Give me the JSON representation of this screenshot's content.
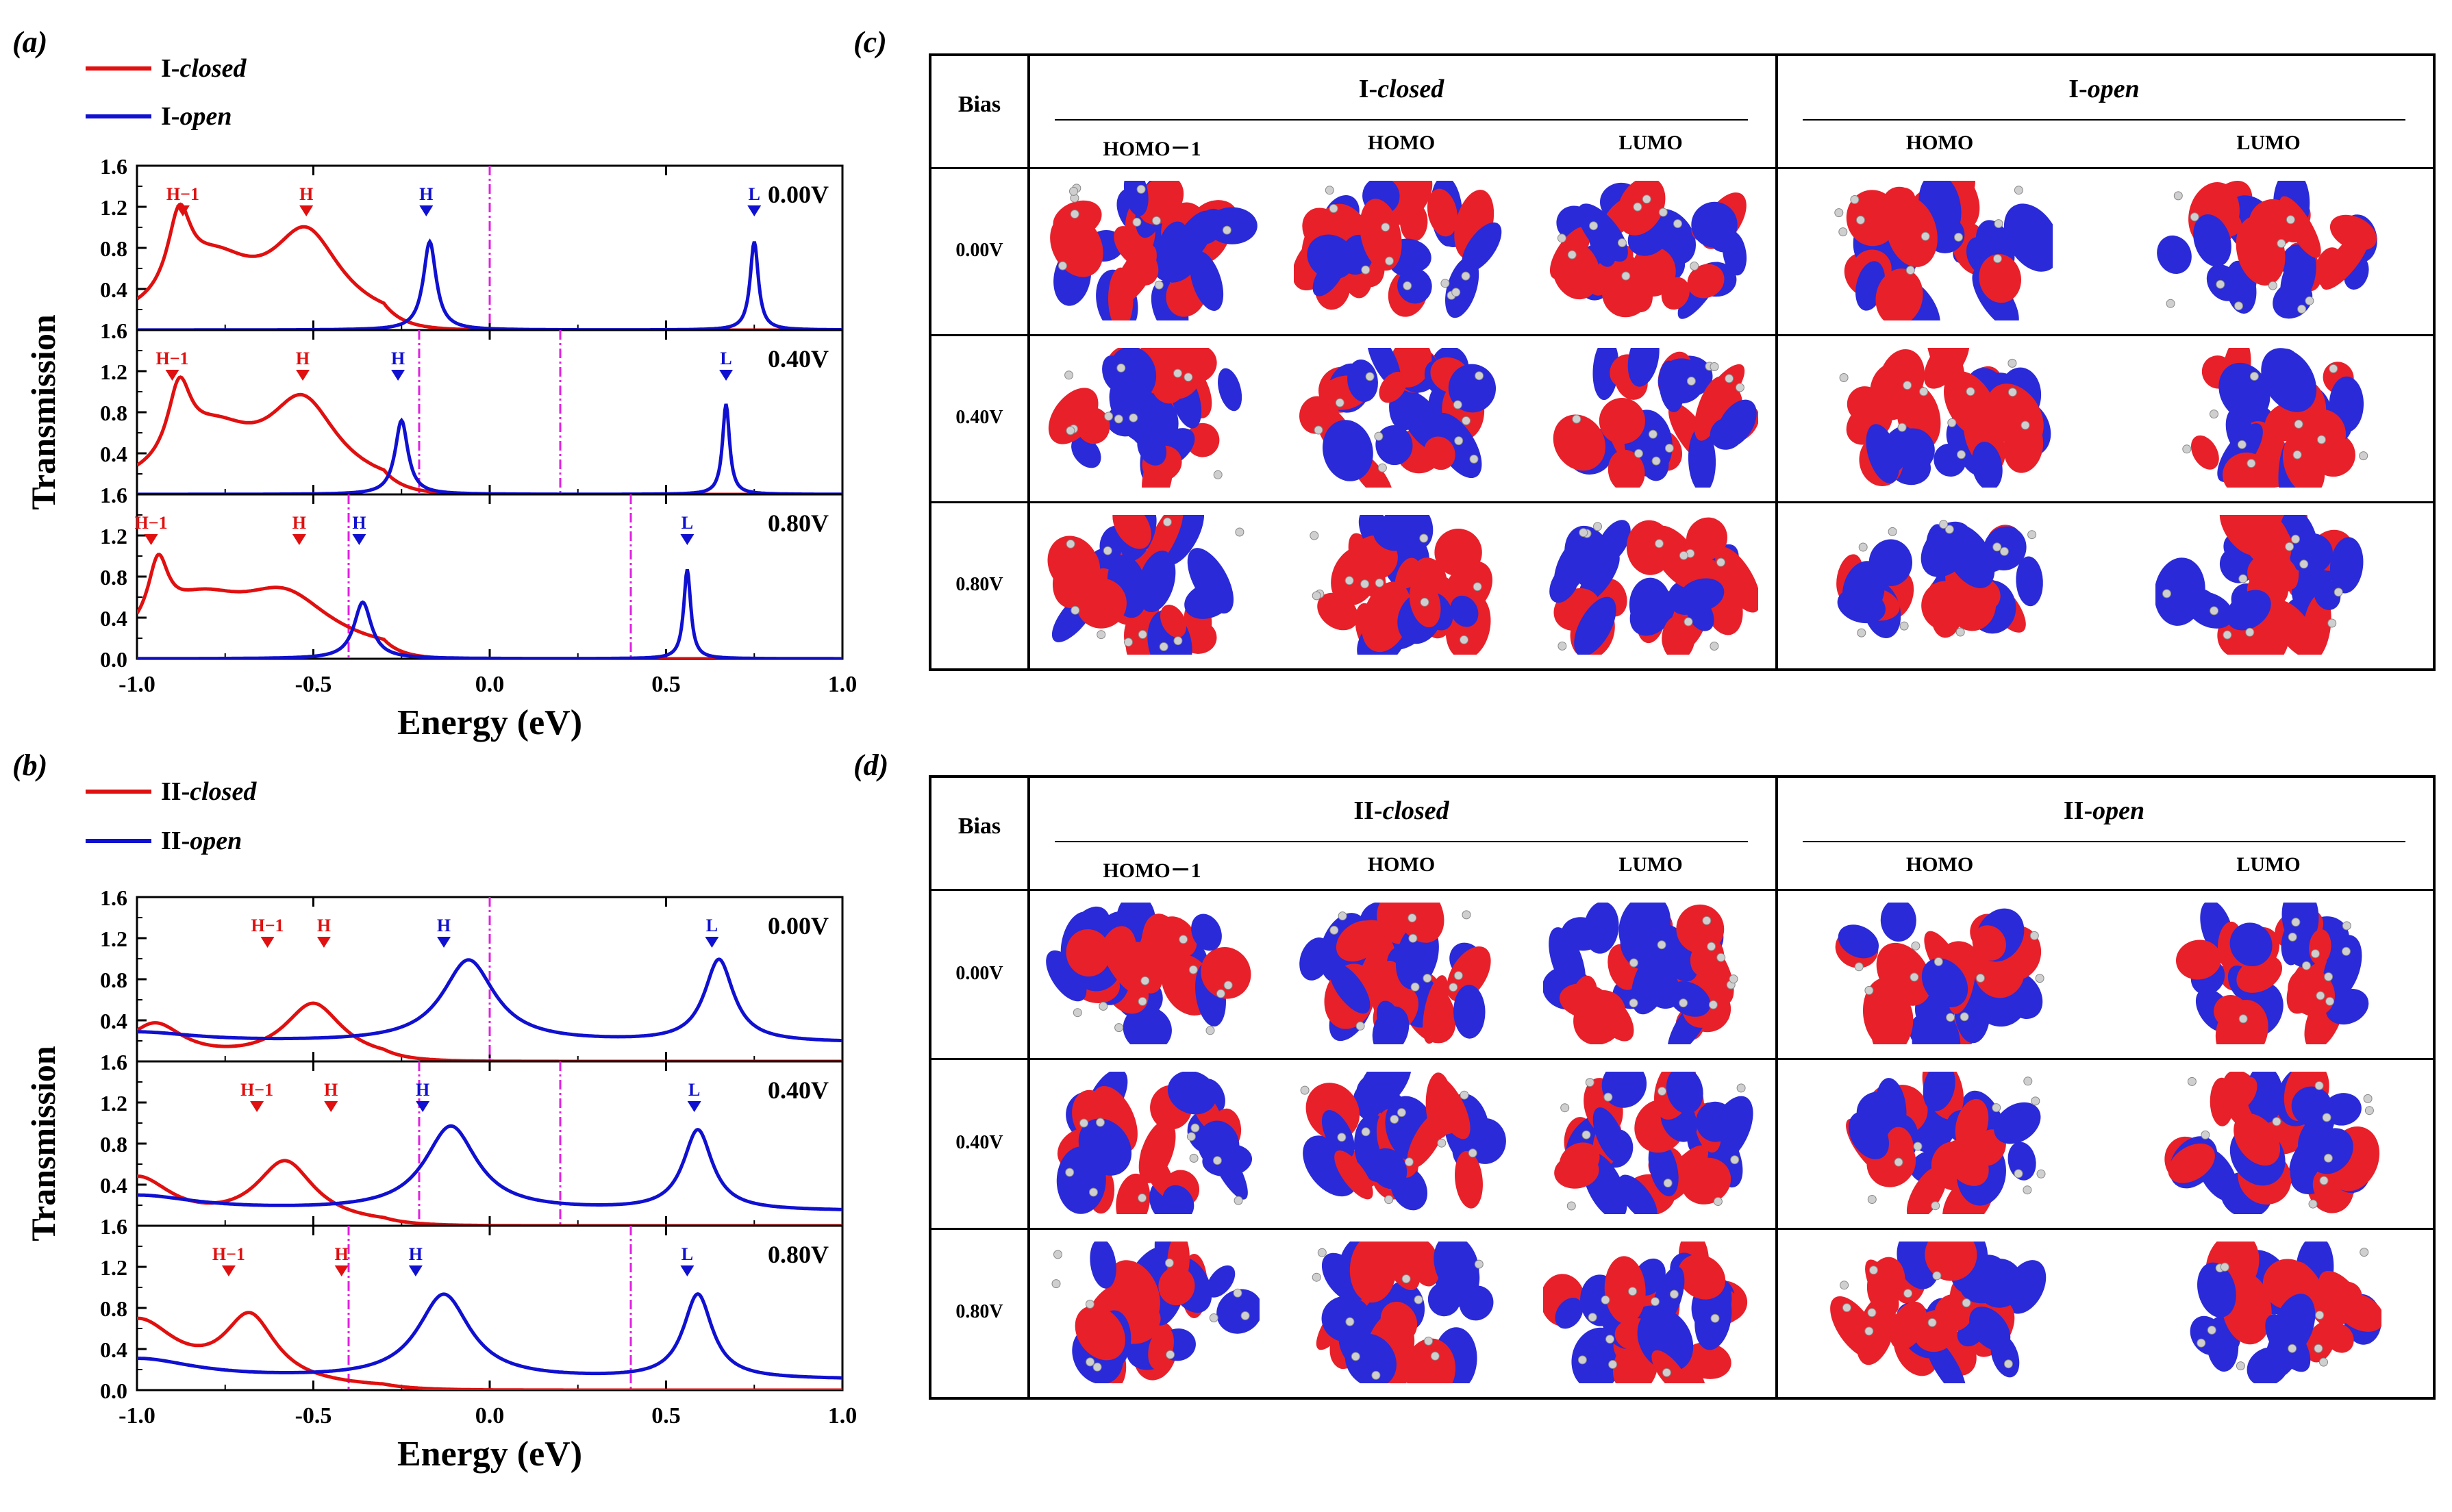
{
  "panels": {
    "a": {
      "letter": "(a)",
      "legend": [
        {
          "prefix": "I-",
          "italic": "closed",
          "color": "#e01010"
        },
        {
          "prefix": "I-",
          "italic": "open",
          "color": "#1010d0"
        }
      ]
    },
    "b": {
      "letter": "(b)",
      "legend": [
        {
          "prefix": "II-",
          "italic": "closed",
          "color": "#e01010"
        },
        {
          "prefix": "II-",
          "italic": "open",
          "color": "#1010d0"
        }
      ]
    },
    "c": {
      "letter": "(c)"
    },
    "d": {
      "letter": "(d)"
    }
  },
  "colors": {
    "closed": "#e01010",
    "open": "#1010d0",
    "fermi": "#e020e0",
    "orb_red": "#e8202a",
    "orb_blue": "#2a2ad8"
  },
  "chart_data": [
    {
      "type": "line",
      "panel": "a",
      "xlabel": "Energy (eV)",
      "ylabel": "Transmission",
      "xlim": [
        -1.0,
        1.0
      ],
      "ylim": [
        0,
        1.6
      ],
      "xticks": [
        "-1.0",
        "-0.5",
        "0.0",
        "0.5",
        "1.0"
      ],
      "yticks": [
        "1.6",
        "1.2",
        "0.8",
        "0.4",
        "0.0"
      ],
      "subplots": [
        {
          "bias": "0.00V",
          "window": [
            0.0,
            0.0
          ],
          "closed": {
            "baseline": 0.02,
            "peaks": [
              [
                -0.88,
                0.75,
                0.04
              ],
              [
                -0.78,
                0.55,
                0.14
              ],
              [
                -0.52,
                0.85,
                0.12
              ]
            ],
            "tail": 0.25
          },
          "open": {
            "baseline": 0.0,
            "peaks": [
              [
                -0.17,
                0.86,
                0.022
              ],
              [
                0.75,
                0.86,
                0.014
              ]
            ]
          },
          "labels": [
            {
              "text": "H−1",
              "x": -0.87,
              "series": "closed"
            },
            {
              "text": "H",
              "x": -0.52,
              "series": "closed"
            },
            {
              "text": "H",
              "x": -0.18,
              "series": "open"
            },
            {
              "text": "L",
              "x": 0.75,
              "series": "open"
            }
          ]
        },
        {
          "bias": "0.40V",
          "window": [
            -0.2,
            0.2
          ],
          "closed": {
            "baseline": 0.02,
            "peaks": [
              [
                -0.88,
                0.7,
                0.04
              ],
              [
                -0.78,
                0.5,
                0.14
              ],
              [
                -0.53,
                0.82,
                0.12
              ]
            ],
            "tail": 0.25
          },
          "open": {
            "baseline": 0.0,
            "peaks": [
              [
                -0.25,
                0.72,
                0.022
              ],
              [
                0.67,
                0.88,
                0.012
              ]
            ]
          },
          "labels": [
            {
              "text": "H−1",
              "x": -0.9,
              "series": "closed"
            },
            {
              "text": "H",
              "x": -0.53,
              "series": "closed"
            },
            {
              "text": "H",
              "x": -0.26,
              "series": "open"
            },
            {
              "text": "L",
              "x": 0.67,
              "series": "open"
            }
          ]
        },
        {
          "bias": "0.80V",
          "window": [
            -0.4,
            0.4
          ],
          "closed": {
            "baseline": 0.02,
            "peaks": [
              [
                -0.94,
                0.62,
                0.035
              ],
              [
                -0.82,
                0.45,
                0.16
              ],
              [
                -0.58,
                0.52,
                0.16
              ]
            ],
            "tail": 0.2
          },
          "open": {
            "baseline": 0.0,
            "peaks": [
              [
                -0.36,
                0.55,
                0.03
              ],
              [
                0.56,
                0.87,
                0.012
              ]
            ]
          },
          "labels": [
            {
              "text": "H−1",
              "x": -0.96,
              "series": "closed"
            },
            {
              "text": "H",
              "x": -0.54,
              "series": "closed"
            },
            {
              "text": "H",
              "x": -0.37,
              "series": "open"
            },
            {
              "text": "L",
              "x": 0.56,
              "series": "open"
            }
          ]
        }
      ]
    },
    {
      "type": "line",
      "panel": "b",
      "xlabel": "Energy (eV)",
      "ylabel": "Transmission",
      "xlim": [
        -1.0,
        1.0
      ],
      "ylim": [
        0,
        1.6
      ],
      "xticks": [
        "-1.0",
        "-0.5",
        "0.0",
        "0.5",
        "1.0"
      ],
      "yticks": [
        "1.6",
        "1.2",
        "0.8",
        "0.4",
        "0.0"
      ],
      "subplots": [
        {
          "bias": "0.00V",
          "window": [
            0.0,
            0.0
          ],
          "closed": {
            "baseline": 0.0,
            "peaks": [
              [
                -0.5,
                0.55,
                0.1
              ],
              [
                -0.95,
                0.35,
                0.1
              ]
            ],
            "tail": 0.4
          },
          "open": {
            "baseline": 0.18,
            "peaks": [
              [
                -0.06,
                0.8,
                0.09
              ],
              [
                0.65,
                0.8,
                0.05
              ],
              [
                -1.0,
                0.1,
                0.2
              ]
            ]
          },
          "labels": [
            {
              "text": "H−1",
              "x": -0.63,
              "series": "closed"
            },
            {
              "text": "H",
              "x": -0.47,
              "series": "closed"
            },
            {
              "text": "H",
              "x": -0.13,
              "series": "open"
            },
            {
              "text": "L",
              "x": 0.63,
              "series": "open"
            }
          ]
        },
        {
          "bias": "0.40V",
          "window": [
            -0.2,
            0.2
          ],
          "closed": {
            "baseline": 0.0,
            "peaks": [
              [
                -0.58,
                0.6,
                0.1
              ],
              [
                -1.0,
                0.45,
                0.12
              ]
            ],
            "tail": 0.4
          },
          "open": {
            "baseline": 0.14,
            "peaks": [
              [
                -0.11,
                0.82,
                0.09
              ],
              [
                0.59,
                0.78,
                0.05
              ],
              [
                -1.0,
                0.15,
                0.2
              ]
            ]
          },
          "labels": [
            {
              "text": "H−1",
              "x": -0.66,
              "series": "closed"
            },
            {
              "text": "H",
              "x": -0.45,
              "series": "closed"
            },
            {
              "text": "H",
              "x": -0.19,
              "series": "open"
            },
            {
              "text": "L",
              "x": 0.58,
              "series": "open"
            }
          ]
        },
        {
          "bias": "0.80V",
          "window": [
            -0.4,
            0.4
          ],
          "closed": {
            "baseline": 0.0,
            "peaks": [
              [
                -0.68,
                0.65,
                0.09
              ],
              [
                -1.0,
                0.65,
                0.14
              ]
            ],
            "tail": 0.4
          },
          "open": {
            "baseline": 0.1,
            "peaks": [
              [
                -0.13,
                0.82,
                0.09
              ],
              [
                0.59,
                0.82,
                0.05
              ],
              [
                -1.0,
                0.2,
                0.2
              ]
            ]
          },
          "labels": [
            {
              "text": "H−1",
              "x": -0.74,
              "series": "closed"
            },
            {
              "text": "H",
              "x": -0.42,
              "series": "closed"
            },
            {
              "text": "H",
              "x": -0.21,
              "series": "open"
            },
            {
              "text": "L",
              "x": 0.56,
              "series": "open"
            }
          ]
        }
      ]
    }
  ],
  "tables": {
    "c": {
      "bias_header": "Bias",
      "groups": [
        {
          "prefix": "I-",
          "italic": "closed",
          "orbitals": [
            "HOMO－1",
            "HOMO",
            "LUMO"
          ]
        },
        {
          "prefix": "I-",
          "italic": "open",
          "orbitals": [
            "HOMO",
            "LUMO"
          ]
        }
      ],
      "rows": [
        "0.00V",
        "0.40V",
        "0.80V"
      ]
    },
    "d": {
      "bias_header": "Bias",
      "groups": [
        {
          "prefix": "II-",
          "italic": "closed",
          "orbitals": [
            "HOMO－1",
            "HOMO",
            "LUMO"
          ]
        },
        {
          "prefix": "II-",
          "italic": "open",
          "orbitals": [
            "HOMO",
            "LUMO"
          ]
        }
      ],
      "rows": [
        "0.00V",
        "0.40V",
        "0.80V"
      ]
    }
  }
}
